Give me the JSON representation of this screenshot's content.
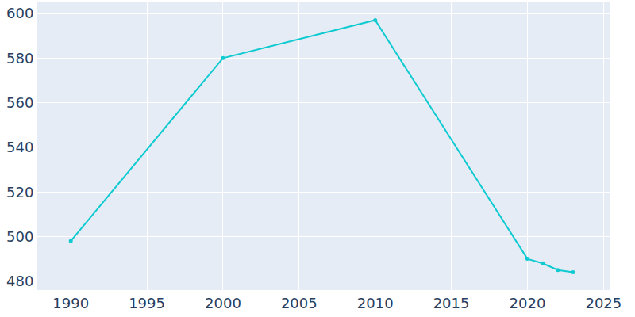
{
  "chart_data": {
    "type": "line",
    "x": [
      1990,
      2000,
      2010,
      2020,
      2021,
      2022,
      2023
    ],
    "values": [
      498,
      580,
      597,
      490,
      488,
      485,
      484
    ],
    "color": "#0fcad0",
    "marker": "circle",
    "line_style": "solid",
    "xlim": [
      1987.8,
      2025.4
    ],
    "xticks": [
      1990,
      1995,
      2000,
      2005,
      2010,
      2015,
      2020,
      2025
    ],
    "ylim": [
      476,
      605
    ],
    "yticks": [
      480,
      500,
      520,
      540,
      560,
      580,
      600
    ],
    "grid": true
  }
}
